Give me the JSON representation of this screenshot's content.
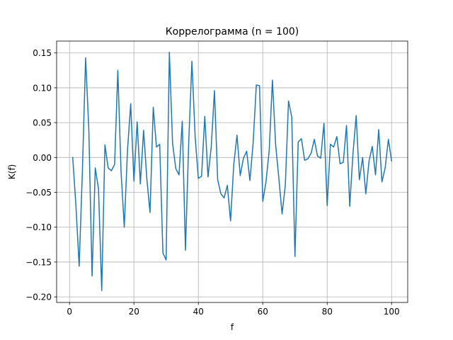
{
  "chart_data": {
    "type": "line",
    "title": "Коррелограмма (n = 100)",
    "xlabel": "f",
    "ylabel": "K(f)",
    "xlim": [
      -4,
      105
    ],
    "ylim": [
      -0.208,
      0.167
    ],
    "xticks": [
      0,
      20,
      40,
      60,
      80,
      100
    ],
    "xtick_labels": [
      "0",
      "20",
      "40",
      "60",
      "80",
      "100"
    ],
    "yticks": [
      -0.2,
      -0.15,
      -0.1,
      -0.05,
      0.0,
      0.05,
      0.1,
      0.15
    ],
    "ytick_labels": [
      "−0.20",
      "−0.15",
      "−0.10",
      "−0.05",
      "0.00",
      "0.05",
      "0.10",
      "0.15"
    ],
    "grid": true,
    "series": [
      {
        "color": "#1f77b4",
        "x": [
          1,
          2,
          3,
          4,
          5,
          6,
          7,
          8,
          9,
          10,
          11,
          12,
          13,
          14,
          15,
          16,
          17,
          18,
          19,
          20,
          21,
          22,
          23,
          24,
          25,
          26,
          27,
          28,
          29,
          30,
          31,
          32,
          33,
          34,
          35,
          36,
          37,
          38,
          39,
          40,
          41,
          42,
          43,
          44,
          45,
          46,
          47,
          48,
          49,
          50,
          51,
          52,
          53,
          54,
          55,
          56,
          57,
          58,
          59,
          60,
          61,
          62,
          63,
          64,
          65,
          66,
          67,
          68,
          69,
          70,
          71,
          72,
          73,
          74,
          75,
          76,
          77,
          78,
          79,
          80,
          81,
          82,
          83,
          84,
          85,
          86,
          87,
          88,
          89,
          90,
          91,
          92,
          93,
          94,
          95,
          96,
          97,
          98,
          99,
          100
        ],
        "y": [
          0.0,
          -0.07,
          -0.156,
          -0.02,
          0.143,
          0.04,
          -0.17,
          -0.015,
          -0.045,
          -0.191,
          0.018,
          -0.015,
          -0.019,
          -0.01,
          0.125,
          -0.02,
          -0.1,
          0.01,
          0.077,
          -0.034,
          0.051,
          -0.038,
          0.039,
          -0.03,
          -0.079,
          0.072,
          0.015,
          0.019,
          -0.137,
          -0.147,
          0.151,
          0.02,
          -0.016,
          -0.025,
          0.052,
          -0.133,
          0.02,
          0.138,
          0.03,
          -0.03,
          -0.027,
          0.059,
          -0.028,
          0.015,
          0.096,
          -0.032,
          -0.052,
          -0.058,
          -0.04,
          -0.091,
          -0.01,
          0.032,
          -0.026,
          -0.001,
          0.009,
          -0.033,
          0.02,
          0.104,
          0.103,
          -0.063,
          -0.035,
          0.01,
          0.111,
          0.018,
          -0.03,
          -0.081,
          -0.04,
          0.081,
          0.058,
          -0.142,
          0.022,
          0.027,
          -0.004,
          -0.002,
          0.006,
          0.026,
          0.002,
          -0.001,
          0.049,
          -0.069,
          0.019,
          0.015,
          0.03,
          -0.009,
          -0.007,
          0.046,
          -0.07,
          0.005,
          0.06,
          -0.032,
          0.0,
          -0.052,
          -0.005,
          0.016,
          -0.025,
          0.04,
          -0.035,
          -0.015,
          0.026,
          -0.005
        ]
      }
    ]
  }
}
